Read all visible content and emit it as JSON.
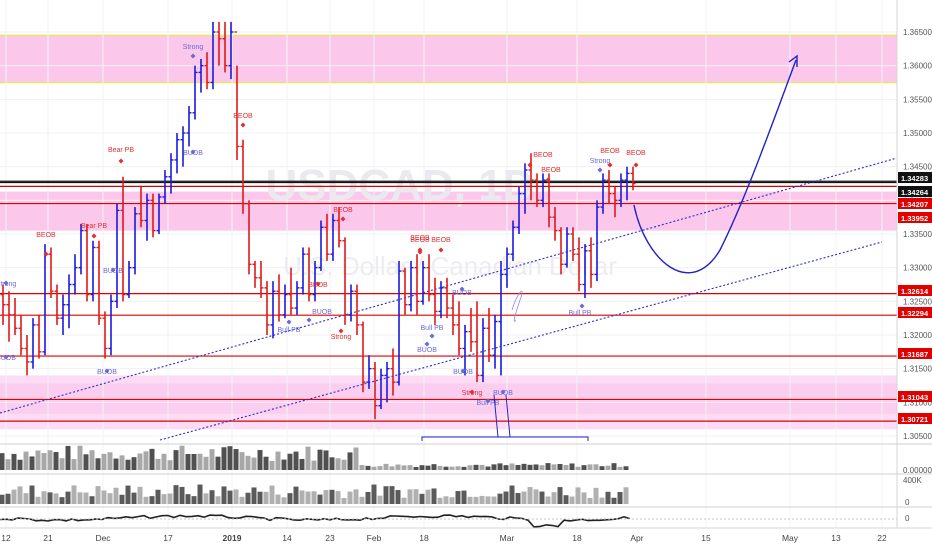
{
  "watermark": {
    "symbol": "USDCAD, 1D",
    "description": "U.S. Dollar / Canadian Dollar"
  },
  "chart_data": {
    "type": "candlestick",
    "symbol": "USDCAD",
    "timeframe": "1D",
    "price_axis": {
      "ticks": [
        1.365,
        1.36,
        1.355,
        1.35,
        1.345,
        1.34,
        1.335,
        1.33,
        1.325,
        1.32,
        1.315,
        1.31,
        1.305
      ],
      "tick_labels": [
        "1.36500",
        "1.36000",
        "1.35500",
        "1.35000",
        "1.34500",
        "1.34000",
        "1.33500",
        "1.33000",
        "1.32500",
        "1.32000",
        "1.31500",
        "1.31000",
        "1.30500"
      ],
      "range": [
        1.3035,
        1.3668
      ]
    },
    "date_axis": {
      "labels": [
        "12",
        "21",
        "Dec",
        "17",
        "2019",
        "14",
        "23",
        "Feb",
        "18",
        "Mar",
        "18",
        "Apr",
        "15",
        "May",
        "13",
        "22"
      ]
    },
    "horizontal_levels": [
      {
        "price": 1.34283,
        "label": "1.34283",
        "color": "#111111"
      },
      {
        "price": 1.34264,
        "label": "1.34264",
        "color": "#111111"
      },
      {
        "price": 1.34207,
        "label": "1.34207",
        "color": "#e00000"
      },
      {
        "price": 1.33952,
        "label": "1.33952",
        "color": "#e00000"
      },
      {
        "price": 1.32614,
        "label": "1.32614",
        "color": "#e00000"
      },
      {
        "price": 1.32294,
        "label": "1.32294",
        "color": "#e00000"
      },
      {
        "price": 1.31687,
        "label": "1.31687",
        "color": "#e00000"
      },
      {
        "price": 1.31043,
        "label": "1.31043",
        "color": "#e00000"
      },
      {
        "price": 1.30721,
        "label": "1.30721",
        "color": "#e00000"
      }
    ],
    "zones": [
      {
        "from": 1.3575,
        "to": 1.3645,
        "color": "#f9b6e6",
        "border": "#e8e36a"
      },
      {
        "from": 1.3355,
        "to": 1.3413,
        "color": "#f9b6e6"
      },
      {
        "from": 1.3083,
        "to": 1.3128,
        "color": "#f9b6e6"
      },
      {
        "from": 1.306,
        "to": 1.314,
        "color": "#fbd0f0"
      }
    ],
    "signals": [
      {
        "label": "Strong",
        "color": "#6a6ad8"
      },
      {
        "label": "BUOB",
        "color": "#6a6ad8"
      },
      {
        "label": "BUOB",
        "color": "#6a6ad8"
      },
      {
        "label": "BEOB",
        "color": "#e03030"
      },
      {
        "label": "Bear PB",
        "color": "#e03030"
      },
      {
        "label": "Strong",
        "color": "#6a6ad8"
      },
      {
        "label": "BUOB",
        "color": "#6a6ad8"
      },
      {
        "label": "BEOB",
        "color": "#e03030"
      },
      {
        "label": "Bear PB",
        "color": "#e03030"
      },
      {
        "label": "BUOB",
        "color": "#6a6ad8"
      },
      {
        "label": "BEOB",
        "color": "#e03030"
      },
      {
        "label": "BUOB",
        "color": "#6a6ad8"
      },
      {
        "label": "Bull PB",
        "color": "#6a6ad8"
      },
      {
        "label": "Strong",
        "color": "#e03030"
      },
      {
        "label": "BEOB",
        "color": "#e03030"
      },
      {
        "label": "BEOB",
        "color": "#e03030"
      },
      {
        "label": "BUOB",
        "color": "#6a6ad8"
      },
      {
        "label": "BUOB",
        "color": "#6a6ad8"
      },
      {
        "label": "Bull PB",
        "color": "#6a6ad8"
      },
      {
        "label": "Strong",
        "color": "#e03030"
      },
      {
        "label": "BUOB",
        "color": "#6a6ad8"
      },
      {
        "label": "Bull PB",
        "color": "#6a6ad8"
      },
      {
        "label": "BEOB",
        "color": "#e03030"
      },
      {
        "label": "BEOB",
        "color": "#e03030"
      },
      {
        "label": "Strong",
        "color": "#6a6ad8"
      },
      {
        "label": "BEOB",
        "color": "#e03030"
      },
      {
        "label": "BEOB",
        "color": "#e03030"
      },
      {
        "label": "BUOB",
        "color": "#6a6ad8"
      },
      {
        "label": "Bull PB",
        "color": "#6a6ad8"
      },
      {
        "label": "BEOB",
        "color": "#e03030"
      },
      {
        "label": "BEOB",
        "color": "#e03030"
      }
    ],
    "volume_axis": {
      "tick_labels": [
        "0.00000"
      ]
    },
    "indicator2_axis": {
      "tick_labels": [
        "400K",
        "0"
      ]
    },
    "indicator3_axis": {
      "tick_labels": [
        "0"
      ]
    },
    "bull_color": "#1a1ae0",
    "bear_color": "#e01a1a"
  }
}
